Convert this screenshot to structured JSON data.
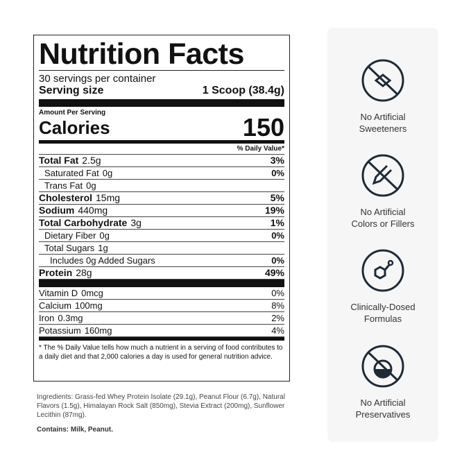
{
  "label": {
    "title": "Nutrition Facts",
    "servings": "30 servings per container",
    "serving_size_label": "Serving size",
    "serving_size": "1 Scoop (38.4g)",
    "amount_per_serving": "Amount Per Serving",
    "calories_label": "Calories",
    "calories": 150,
    "dv_header": "% Daily Value*",
    "nutrients": [
      {
        "name": "Total Fat",
        "amount": "2.5g",
        "dv": "3%",
        "level": 0
      },
      {
        "name": "Saturated Fat",
        "amount": "0g",
        "dv": "0%",
        "level": 1
      },
      {
        "name": "Trans Fat",
        "amount": "0g",
        "dv": null,
        "level": 1
      },
      {
        "name": "Cholesterol",
        "amount": "15mg",
        "dv": "5%",
        "level": 0
      },
      {
        "name": "Sodium",
        "amount": "440mg",
        "dv": "19%",
        "level": 0
      },
      {
        "name": "Total Carbohydrate",
        "amount": "3g",
        "dv": "1%",
        "level": 0
      },
      {
        "name": "Dietary Fiber",
        "amount": "0g",
        "dv": "0%",
        "level": 1
      },
      {
        "name": "Total Sugars",
        "amount": "1g",
        "dv": null,
        "level": 1
      },
      {
        "name": "Includes 0g Added Sugars",
        "amount": null,
        "dv": "0%",
        "level": 2
      },
      {
        "name": "Protein",
        "amount": "28g",
        "dv": "49%",
        "level": 0
      }
    ],
    "vitamins": [
      {
        "name": "Vitamin D",
        "amount": "0mcg",
        "dv": "0%"
      },
      {
        "name": "Calcium",
        "amount": "100mg",
        "dv": "8%"
      },
      {
        "name": "Iron",
        "amount": "0.3mg",
        "dv": "2%"
      },
      {
        "name": "Potassium",
        "amount": "160mg",
        "dv": "4%"
      }
    ],
    "footnote": "* The % Daily Value tells how much a nutrient in a serving of food contributes to a daily diet and that 2,000 calories a day is used for general nutrition advice."
  },
  "ingredients": "Ingredients: Grass-fed Whey Protein Isolate (29.1g), Peanut Flour (6.7g), Natural Flavors (1.5g), Himalayan Rock Salt (850mg), Stevia Extract (200mg), Sunflower Lecithin (87mg).",
  "contains": "Contains: Milk, Peanut.",
  "features": [
    {
      "label": "No Artificial Sweeteners"
    },
    {
      "label": "No Artificial Colors or Fillers"
    },
    {
      "label": "Clinically-Dosed Formulas"
    },
    {
      "label": "No Artificial Preservatives"
    }
  ]
}
